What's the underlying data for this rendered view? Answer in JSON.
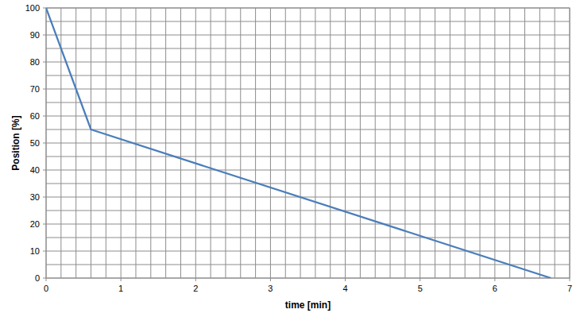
{
  "chart_data": {
    "type": "line",
    "x_label": "time [min]",
    "y_label": "Position [%]",
    "x": [
      0,
      0.6,
      6.75
    ],
    "values": [
      100,
      55,
      0
    ],
    "color": "#4a7ebb",
    "xlim": [
      0,
      7
    ],
    "ylim": [
      0,
      100
    ],
    "xticks": [
      0,
      1,
      2,
      3,
      4,
      5,
      6,
      7
    ],
    "yticks": [
      0,
      10,
      20,
      30,
      40,
      50,
      60,
      70,
      80,
      90,
      100
    ],
    "grid": true
  }
}
